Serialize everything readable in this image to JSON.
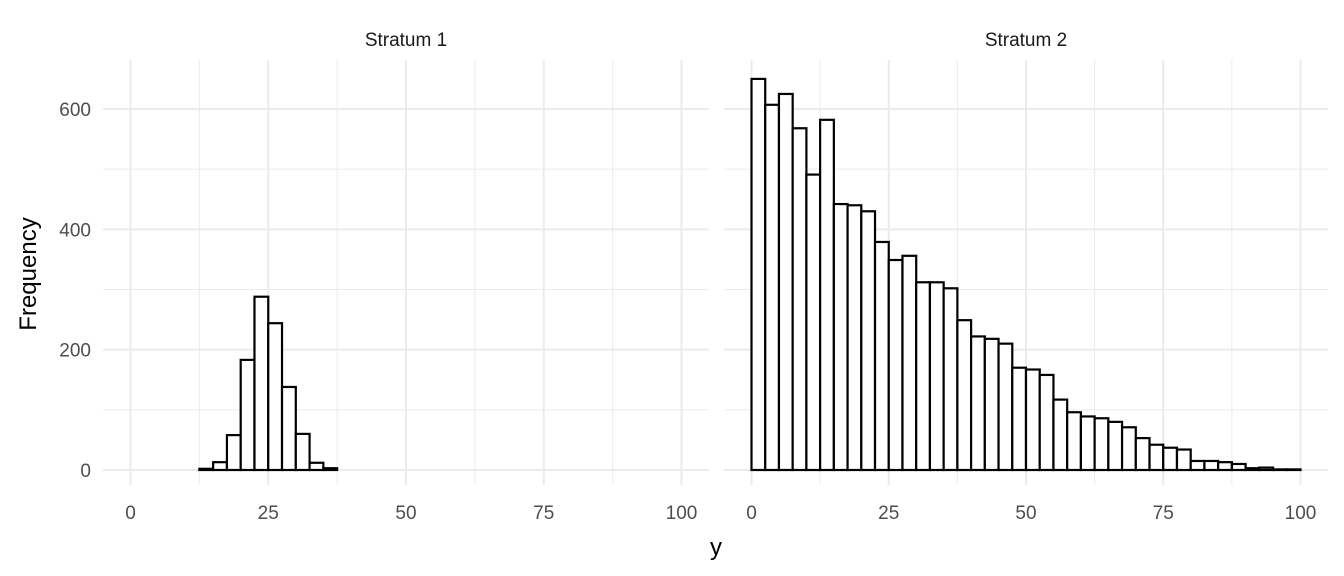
{
  "chart_data": {
    "type": "bar",
    "chart_kind": "histogram (faceted)",
    "xlabel": "y",
    "ylabel": "Frequency",
    "xlim": [
      0,
      100
    ],
    "ylim": [
      0,
      680
    ],
    "x_ticks": [
      0,
      25,
      50,
      75,
      100
    ],
    "y_ticks": [
      0,
      200,
      400,
      600
    ],
    "grid": true,
    "bin_width": 2.5,
    "bin_starts": [
      0,
      2.5,
      5,
      7.5,
      10,
      12.5,
      15,
      17.5,
      20,
      22.5,
      25,
      27.5,
      30,
      32.5,
      35,
      37.5,
      40,
      42.5,
      45,
      47.5,
      50,
      52.5,
      55,
      57.5,
      60,
      62.5,
      65,
      67.5,
      70,
      72.5,
      75,
      77.5,
      80,
      82.5,
      85,
      87.5,
      90,
      92.5,
      95,
      97.5
    ],
    "panels": [
      {
        "strip_label": "Stratum 1",
        "values": [
          0,
          0,
          0,
          0,
          0,
          2,
          13,
          58,
          183,
          288,
          244,
          138,
          60,
          12,
          3,
          0,
          0,
          0,
          0,
          0,
          0,
          0,
          0,
          0,
          0,
          0,
          0,
          0,
          0,
          0,
          0,
          0,
          0,
          0,
          0,
          0,
          0,
          0,
          0,
          0
        ]
      },
      {
        "strip_label": "Stratum 2",
        "values": [
          650,
          607,
          625,
          568,
          491,
          582,
          442,
          440,
          430,
          379,
          349,
          356,
          312,
          312,
          302,
          249,
          222,
          218,
          210,
          170,
          167,
          158,
          117,
          96,
          89,
          86,
          80,
          71,
          53,
          42,
          37,
          34,
          15,
          15,
          13,
          10,
          3,
          4,
          1,
          1
        ]
      }
    ]
  }
}
